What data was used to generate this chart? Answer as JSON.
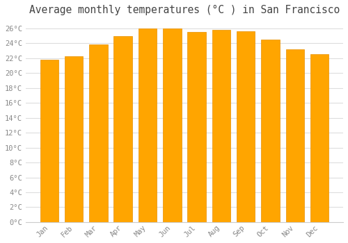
{
  "title": "Average monthly temperatures (°C ) in San Francisco",
  "months": [
    "Jan",
    "Feb",
    "Mar",
    "Apr",
    "May",
    "Jun",
    "Jul",
    "Aug",
    "Sep",
    "Oct",
    "Nov",
    "Dec"
  ],
  "values": [
    21.8,
    22.3,
    23.8,
    25.0,
    26.0,
    26.0,
    25.5,
    25.8,
    25.6,
    24.5,
    23.2,
    22.5
  ],
  "bar_color_top": "#FFBB33",
  "bar_color_bottom": "#FFA500",
  "bar_edge_color": "#E89000",
  "background_color": "#ffffff",
  "plot_bg_color": "#ffffff",
  "grid_color": "#dddddd",
  "tick_label_color": "#888888",
  "title_color": "#444444",
  "ylim": [
    0,
    27
  ],
  "ytick_values": [
    0,
    2,
    4,
    6,
    8,
    10,
    12,
    14,
    16,
    18,
    20,
    22,
    24,
    26
  ],
  "title_fontsize": 10.5,
  "tick_fontsize": 7.5
}
